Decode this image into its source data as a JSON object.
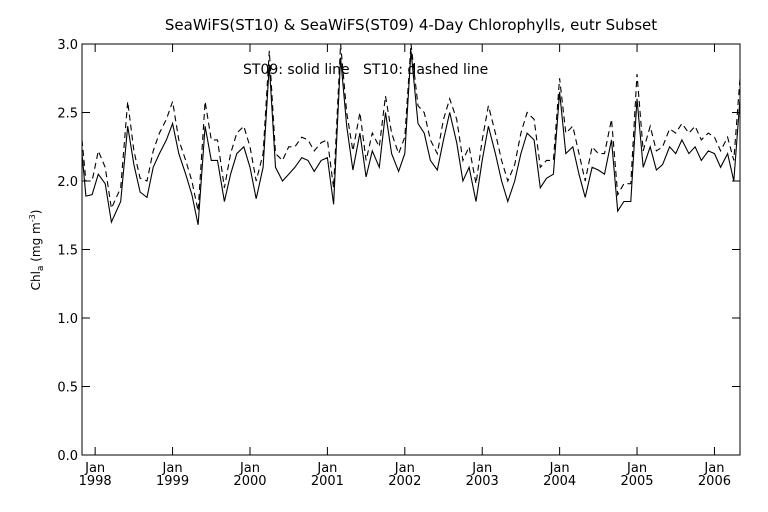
{
  "chart_data": {
    "type": "line",
    "title": "SeaWiFS(ST10) & SeaWiFS(ST09) 4-Day Chlorophylls, eutr Subset",
    "annotation": "ST09: solid line   ST10: dashed line",
    "ylabel": {
      "main": "Chl",
      "sub": "a",
      "unit_open": " (mg m",
      "unit_sup": "-3",
      "unit_close": ")"
    },
    "xlim": [
      1997.83,
      2006.33
    ],
    "ylim": [
      0.0,
      3.0
    ],
    "yticks": [
      "0.0",
      "0.5",
      "1.0",
      "1.5",
      "2.0",
      "2.5",
      "3.0"
    ],
    "xticks": [
      {
        "month": "Jan",
        "year": "1998",
        "x": 1998.0
      },
      {
        "month": "Jan",
        "year": "1999",
        "x": 1999.0
      },
      {
        "month": "Jan",
        "year": "2000",
        "x": 2000.0
      },
      {
        "month": "Jan",
        "year": "2001",
        "x": 2001.0
      },
      {
        "month": "Jan",
        "year": "2002",
        "x": 2002.0
      },
      {
        "month": "Jan",
        "year": "2003",
        "x": 2003.0
      },
      {
        "month": "Jan",
        "year": "2004",
        "x": 2004.0
      },
      {
        "month": "Jan",
        "year": "2005",
        "x": 2005.0
      },
      {
        "month": "Jan",
        "year": "2006",
        "x": 2006.0
      }
    ],
    "series": [
      {
        "name": "ST09",
        "style": "solid",
        "x": [
          1997.83,
          1997.88,
          1997.96,
          1998.04,
          1998.13,
          1998.21,
          1998.33,
          1998.42,
          1998.5,
          1998.58,
          1998.67,
          1998.75,
          1998.83,
          1998.92,
          1999.0,
          1999.08,
          1999.17,
          1999.25,
          1999.33,
          1999.42,
          1999.5,
          1999.58,
          1999.67,
          1999.75,
          1999.83,
          1999.92,
          2000.0,
          2000.08,
          2000.17,
          2000.25,
          2000.33,
          2000.42,
          2000.5,
          2000.58,
          2000.67,
          2000.75,
          2000.83,
          2000.92,
          2001.0,
          2001.08,
          2001.17,
          2001.25,
          2001.33,
          2001.42,
          2001.5,
          2001.58,
          2001.67,
          2001.75,
          2001.83,
          2001.92,
          2002.0,
          2002.08,
          2002.17,
          2002.25,
          2002.33,
          2002.42,
          2002.5,
          2002.58,
          2002.67,
          2002.75,
          2002.83,
          2002.92,
          2003.0,
          2003.08,
          2003.17,
          2003.25,
          2003.33,
          2003.42,
          2003.5,
          2003.58,
          2003.67,
          2003.75,
          2003.83,
          2003.92,
          2004.0,
          2004.08,
          2004.17,
          2004.25,
          2004.33,
          2004.42,
          2004.5,
          2004.58,
          2004.67,
          2004.75,
          2004.83,
          2004.92,
          2005.0,
          2005.08,
          2005.17,
          2005.25,
          2005.33,
          2005.42,
          2005.5,
          2005.58,
          2005.67,
          2005.75,
          2005.83,
          2005.92,
          2006.0,
          2006.08,
          2006.17,
          2006.25,
          2006.33
        ],
        "values": [
          2.2,
          1.89,
          1.9,
          2.05,
          1.98,
          1.7,
          1.85,
          2.4,
          2.12,
          1.92,
          1.88,
          2.1,
          2.2,
          2.3,
          2.42,
          2.2,
          2.05,
          1.9,
          1.68,
          2.4,
          2.15,
          2.15,
          1.85,
          2.05,
          2.2,
          2.25,
          2.1,
          1.87,
          2.1,
          2.85,
          2.1,
          2.0,
          2.05,
          2.1,
          2.17,
          2.15,
          2.07,
          2.15,
          2.17,
          1.83,
          2.9,
          2.4,
          2.08,
          2.35,
          2.03,
          2.22,
          2.1,
          2.5,
          2.2,
          2.07,
          2.2,
          2.95,
          2.42,
          2.35,
          2.15,
          2.08,
          2.3,
          2.5,
          2.28,
          2.0,
          2.1,
          1.85,
          2.15,
          2.4,
          2.2,
          2.0,
          1.85,
          2.0,
          2.2,
          2.35,
          2.3,
          1.95,
          2.02,
          2.05,
          2.65,
          2.2,
          2.25,
          2.05,
          1.88,
          2.1,
          2.08,
          2.05,
          2.3,
          1.78,
          1.85,
          1.85,
          2.6,
          2.1,
          2.25,
          2.08,
          2.12,
          2.25,
          2.2,
          2.3,
          2.2,
          2.25,
          2.15,
          2.22,
          2.2,
          2.1,
          2.2,
          2.0,
          2.6
        ]
      },
      {
        "name": "ST10",
        "style": "dashed",
        "x": [
          1997.83,
          1997.88,
          1997.96,
          1998.04,
          1998.13,
          1998.21,
          1998.33,
          1998.42,
          1998.5,
          1998.58,
          1998.67,
          1998.75,
          1998.83,
          1998.92,
          1999.0,
          1999.08,
          1999.17,
          1999.25,
          1999.33,
          1999.42,
          1999.5,
          1999.58,
          1999.67,
          1999.75,
          1999.83,
          1999.92,
          2000.0,
          2000.08,
          2000.17,
          2000.25,
          2000.33,
          2000.42,
          2000.5,
          2000.58,
          2000.67,
          2000.75,
          2000.83,
          2000.92,
          2001.0,
          2001.08,
          2001.17,
          2001.25,
          2001.33,
          2001.42,
          2001.5,
          2001.58,
          2001.67,
          2001.75,
          2001.83,
          2001.92,
          2002.0,
          2002.08,
          2002.17,
          2002.25,
          2002.33,
          2002.42,
          2002.5,
          2002.58,
          2002.67,
          2002.75,
          2002.83,
          2002.92,
          2003.0,
          2003.08,
          2003.17,
          2003.25,
          2003.33,
          2003.42,
          2003.5,
          2003.58,
          2003.67,
          2003.75,
          2003.83,
          2003.92,
          2004.0,
          2004.08,
          2004.17,
          2004.25,
          2004.33,
          2004.42,
          2004.5,
          2004.58,
          2004.67,
          2004.75,
          2004.83,
          2004.92,
          2005.0,
          2005.08,
          2005.17,
          2005.25,
          2005.33,
          2005.42,
          2005.5,
          2005.58,
          2005.67,
          2005.75,
          2005.83,
          2005.92,
          2006.0,
          2006.08,
          2006.17,
          2006.25,
          2006.33
        ],
        "values": [
          2.3,
          2.0,
          2.0,
          2.22,
          2.1,
          1.8,
          1.95,
          2.58,
          2.22,
          2.02,
          2.0,
          2.22,
          2.35,
          2.45,
          2.58,
          2.3,
          2.15,
          2.0,
          1.78,
          2.58,
          2.3,
          2.3,
          1.95,
          2.2,
          2.35,
          2.4,
          2.25,
          2.0,
          2.2,
          2.95,
          2.2,
          2.15,
          2.25,
          2.25,
          2.32,
          2.3,
          2.22,
          2.28,
          2.3,
          1.95,
          3.0,
          2.5,
          2.22,
          2.5,
          2.15,
          2.35,
          2.25,
          2.62,
          2.35,
          2.2,
          2.32,
          3.0,
          2.55,
          2.5,
          2.3,
          2.2,
          2.45,
          2.6,
          2.45,
          2.15,
          2.25,
          1.98,
          2.3,
          2.55,
          2.35,
          2.15,
          2.0,
          2.12,
          2.35,
          2.5,
          2.45,
          2.1,
          2.15,
          2.15,
          2.75,
          2.35,
          2.4,
          2.2,
          2.0,
          2.25,
          2.2,
          2.2,
          2.45,
          1.9,
          1.98,
          1.98,
          2.78,
          2.22,
          2.4,
          2.22,
          2.25,
          2.38,
          2.35,
          2.42,
          2.35,
          2.4,
          2.3,
          2.35,
          2.32,
          2.22,
          2.32,
          2.15,
          2.75
        ]
      }
    ]
  }
}
